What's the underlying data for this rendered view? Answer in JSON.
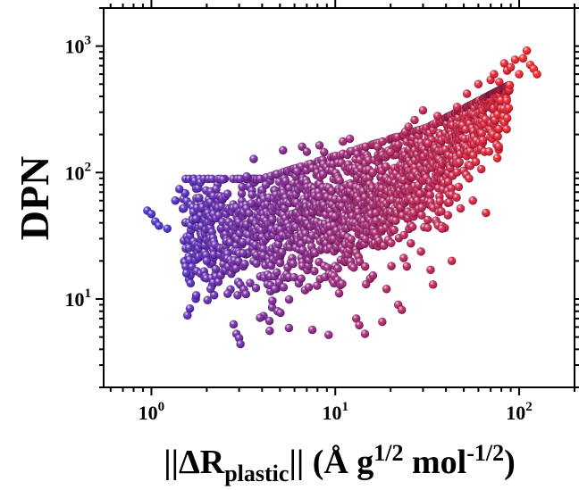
{
  "chart_data": {
    "type": "scatter",
    "title": "",
    "xlabel": "||ΔR_plastic|| (Å g^1/2 mol^-1/2)",
    "xlabel_parts": {
      "open": "||ΔR",
      "subscript": "plastic",
      "close": "|| (Å g",
      "exp1": "1/2",
      "mid": " mol",
      "exp2": "-1/2",
      "end": ")"
    },
    "ylabel": "DPN",
    "x_scale": "log",
    "y_scale": "log",
    "xlim": [
      0.55,
      200
    ],
    "ylim": [
      2.0,
      2000
    ],
    "x_ticks": [
      {
        "value": 1,
        "base": "10",
        "exp": "0"
      },
      {
        "value": 10,
        "base": "10",
        "exp": "1"
      },
      {
        "value": 100,
        "base": "10",
        "exp": "2"
      }
    ],
    "y_ticks": [
      {
        "value": 10,
        "base": "10",
        "exp": "1"
      },
      {
        "value": 100,
        "base": "10",
        "exp": "2"
      },
      {
        "value": 1000,
        "base": "10",
        "exp": "3"
      }
    ],
    "grid": false,
    "legend": "none",
    "colors": {
      "low": "#3a1fd0",
      "high": "#ff1010"
    },
    "points": [
      [
        0.95,
        50
      ],
      [
        1.0,
        47
      ],
      [
        1.05,
        41
      ],
      [
        1.1,
        38
      ],
      [
        1.22,
        36
      ],
      [
        1.35,
        60
      ],
      [
        1.42,
        74
      ],
      [
        1.5,
        52
      ],
      [
        1.55,
        16
      ],
      [
        1.62,
        8.4
      ],
      [
        1.75,
        43
      ],
      [
        1.82,
        63
      ],
      [
        2.0,
        20
      ],
      [
        2.1,
        12
      ],
      [
        2.25,
        74
      ],
      [
        2.45,
        88
      ],
      [
        2.6,
        11
      ],
      [
        2.8,
        6.3
      ],
      [
        2.9,
        5.3
      ],
      [
        3.0,
        4.9
      ],
      [
        3.05,
        4.4
      ],
      [
        3.15,
        23
      ],
      [
        3.3,
        93
      ],
      [
        3.5,
        57
      ],
      [
        3.6,
        128
      ],
      [
        3.9,
        7.1
      ],
      [
        4.2,
        80
      ],
      [
        4.4,
        5.6
      ],
      [
        4.7,
        12
      ],
      [
        5.2,
        150
      ],
      [
        5.6,
        5.9
      ],
      [
        5.9,
        19
      ],
      [
        6.2,
        102
      ],
      [
        6.6,
        160
      ],
      [
        7.0,
        146
      ],
      [
        7.5,
        5.7
      ],
      [
        8.2,
        164
      ],
      [
        8.7,
        145
      ],
      [
        9.2,
        5.2
      ],
      [
        10,
        45
      ],
      [
        11,
        176
      ],
      [
        12,
        185
      ],
      [
        13,
        7.0
      ],
      [
        13.5,
        6.2
      ],
      [
        14.5,
        5.3
      ],
      [
        16,
        100
      ],
      [
        17,
        160
      ],
      [
        18,
        6.6
      ],
      [
        19,
        12
      ],
      [
        20,
        145
      ],
      [
        22,
        9.0
      ],
      [
        23,
        8.2
      ],
      [
        24,
        210
      ],
      [
        25,
        230
      ],
      [
        27,
        260
      ],
      [
        29,
        68
      ],
      [
        30,
        310
      ],
      [
        32,
        170
      ],
      [
        33,
        17
      ],
      [
        34,
        13
      ],
      [
        36,
        280
      ],
      [
        38,
        36
      ],
      [
        41,
        46
      ],
      [
        43,
        20
      ],
      [
        46,
        330
      ],
      [
        48,
        52
      ],
      [
        52,
        420
      ],
      [
        56,
        60
      ],
      [
        60,
        500
      ],
      [
        66,
        48
      ],
      [
        70,
        540
      ],
      [
        73,
        600
      ],
      [
        76,
        130
      ],
      [
        78,
        520
      ],
      [
        83,
        730
      ],
      [
        86,
        640
      ],
      [
        90,
        680
      ],
      [
        95,
        780
      ],
      [
        100,
        600
      ],
      [
        105,
        800
      ],
      [
        110,
        920
      ],
      [
        115,
        710
      ],
      [
        120,
        660
      ],
      [
        125,
        600
      ]
    ]
  }
}
